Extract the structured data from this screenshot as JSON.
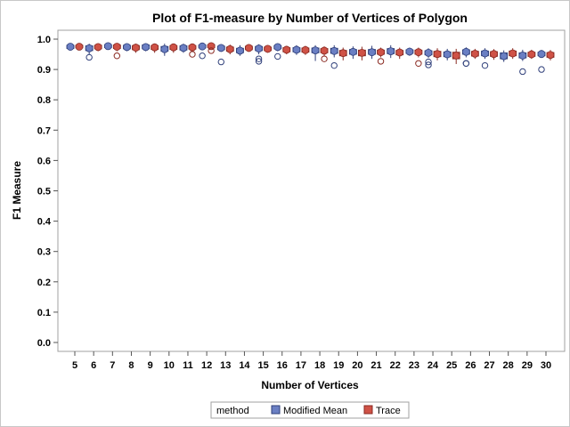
{
  "chart_data": {
    "type": "box",
    "title": "Plot of F1-measure by Number of Vertices of Polygon",
    "xlabel": "Number of Vertices",
    "ylabel": "F1 Measure",
    "ylim": [
      0.0,
      1.0
    ],
    "yticks": [
      "0.0",
      "0.1",
      "0.2",
      "0.3",
      "0.4",
      "0.5",
      "0.6",
      "0.7",
      "0.8",
      "0.9",
      "1.0"
    ],
    "grid": false,
    "legend_position": "bottom",
    "legend_title": "method",
    "categories": [
      "5",
      "6",
      "7",
      "8",
      "9",
      "10",
      "11",
      "12",
      "13",
      "14",
      "15",
      "16",
      "17",
      "18",
      "19",
      "20",
      "21",
      "22",
      "23",
      "24",
      "25",
      "26",
      "27",
      "28",
      "29",
      "30"
    ],
    "series": [
      {
        "name": "Modified Mean",
        "color": "#6a7fc3",
        "edge_color": "#2f3f7a",
        "boxes": [
          {
            "min": 0.962,
            "q1": 0.969,
            "median": 0.974,
            "q3": 0.98,
            "max": 0.985,
            "mean": 0.975,
            "outliers": []
          },
          {
            "min": 0.95,
            "q1": 0.962,
            "median": 0.97,
            "q3": 0.978,
            "max": 0.985,
            "mean": 0.97,
            "outliers": [
              0.94
            ]
          },
          {
            "min": 0.966,
            "q1": 0.972,
            "median": 0.977,
            "q3": 0.982,
            "max": 0.987,
            "mean": 0.977,
            "outliers": []
          },
          {
            "min": 0.96,
            "q1": 0.968,
            "median": 0.974,
            "q3": 0.98,
            "max": 0.985,
            "mean": 0.974,
            "outliers": []
          },
          {
            "min": 0.96,
            "q1": 0.968,
            "median": 0.975,
            "q3": 0.981,
            "max": 0.986,
            "mean": 0.974,
            "outliers": []
          },
          {
            "min": 0.945,
            "q1": 0.96,
            "median": 0.968,
            "q3": 0.976,
            "max": 0.985,
            "mean": 0.967,
            "outliers": []
          },
          {
            "min": 0.955,
            "q1": 0.964,
            "median": 0.971,
            "q3": 0.978,
            "max": 0.985,
            "mean": 0.971,
            "outliers": []
          },
          {
            "min": 0.965,
            "q1": 0.971,
            "median": 0.976,
            "q3": 0.981,
            "max": 0.986,
            "mean": 0.976,
            "outliers": [
              0.945
            ]
          },
          {
            "min": 0.958,
            "q1": 0.965,
            "median": 0.971,
            "q3": 0.977,
            "max": 0.983,
            "mean": 0.971,
            "outliers": [
              0.925
            ]
          },
          {
            "min": 0.945,
            "q1": 0.955,
            "median": 0.962,
            "q3": 0.97,
            "max": 0.98,
            "mean": 0.962,
            "outliers": []
          },
          {
            "min": 0.95,
            "q1": 0.962,
            "median": 0.969,
            "q3": 0.976,
            "max": 0.983,
            "mean": 0.969,
            "outliers": [
              0.935,
              0.927
            ]
          },
          {
            "min": 0.96,
            "q1": 0.968,
            "median": 0.974,
            "q3": 0.979,
            "max": 0.985,
            "mean": 0.974,
            "outliers": [
              0.943
            ]
          },
          {
            "min": 0.948,
            "q1": 0.958,
            "median": 0.965,
            "q3": 0.972,
            "max": 0.98,
            "mean": 0.965,
            "outliers": []
          },
          {
            "min": 0.928,
            "q1": 0.955,
            "median": 0.963,
            "q3": 0.971,
            "max": 0.98,
            "mean": 0.963,
            "outliers": []
          },
          {
            "min": 0.94,
            "q1": 0.953,
            "median": 0.962,
            "q3": 0.97,
            "max": 0.98,
            "mean": 0.961,
            "outliers": [
              0.913
            ]
          },
          {
            "min": 0.935,
            "q1": 0.95,
            "median": 0.958,
            "q3": 0.966,
            "max": 0.976,
            "mean": 0.958,
            "outliers": []
          },
          {
            "min": 0.935,
            "q1": 0.95,
            "median": 0.958,
            "q3": 0.966,
            "max": 0.978,
            "mean": 0.957,
            "outliers": []
          },
          {
            "min": 0.938,
            "q1": 0.952,
            "median": 0.961,
            "q3": 0.969,
            "max": 0.98,
            "mean": 0.96,
            "outliers": []
          },
          {
            "min": 0.945,
            "q1": 0.953,
            "median": 0.959,
            "q3": 0.965,
            "max": 0.972,
            "mean": 0.959,
            "outliers": []
          },
          {
            "min": 0.938,
            "q1": 0.948,
            "median": 0.955,
            "q3": 0.962,
            "max": 0.97,
            "mean": 0.955,
            "outliers": [
              0.915,
              0.925
            ]
          },
          {
            "min": 0.93,
            "q1": 0.942,
            "median": 0.95,
            "q3": 0.958,
            "max": 0.968,
            "mean": 0.95,
            "outliers": []
          },
          {
            "min": 0.94,
            "q1": 0.95,
            "median": 0.958,
            "q3": 0.965,
            "max": 0.973,
            "mean": 0.958,
            "outliers": [
              0.92,
              0.92
            ]
          },
          {
            "min": 0.935,
            "q1": 0.945,
            "median": 0.953,
            "q3": 0.961,
            "max": 0.97,
            "mean": 0.953,
            "outliers": [
              0.913
            ]
          },
          {
            "min": 0.925,
            "q1": 0.935,
            "median": 0.945,
            "q3": 0.955,
            "max": 0.963,
            "mean": 0.944,
            "outliers": []
          },
          {
            "min": 0.928,
            "q1": 0.938,
            "median": 0.946,
            "q3": 0.955,
            "max": 0.965,
            "mean": 0.946,
            "outliers": [
              0.893
            ]
          },
          {
            "min": 0.938,
            "q1": 0.945,
            "median": 0.951,
            "q3": 0.957,
            "max": 0.964,
            "mean": 0.951,
            "outliers": [
              0.9
            ]
          }
        ]
      },
      {
        "name": "Trace",
        "color": "#cf5246",
        "edge_color": "#8a2a22",
        "boxes": [
          {
            "min": 0.965,
            "q1": 0.971,
            "median": 0.975,
            "q3": 0.98,
            "max": 0.985,
            "mean": 0.975,
            "outliers": []
          },
          {
            "min": 0.96,
            "q1": 0.968,
            "median": 0.974,
            "q3": 0.98,
            "max": 0.985,
            "mean": 0.974,
            "outliers": []
          },
          {
            "min": 0.96,
            "q1": 0.969,
            "median": 0.975,
            "q3": 0.981,
            "max": 0.986,
            "mean": 0.975,
            "outliers": [
              0.945
            ]
          },
          {
            "min": 0.955,
            "q1": 0.965,
            "median": 0.972,
            "q3": 0.979,
            "max": 0.985,
            "mean": 0.972,
            "outliers": []
          },
          {
            "min": 0.955,
            "q1": 0.966,
            "median": 0.973,
            "q3": 0.979,
            "max": 0.985,
            "mean": 0.973,
            "outliers": []
          },
          {
            "min": 0.955,
            "q1": 0.966,
            "median": 0.973,
            "q3": 0.979,
            "max": 0.985,
            "mean": 0.973,
            "outliers": []
          },
          {
            "min": 0.958,
            "q1": 0.967,
            "median": 0.973,
            "q3": 0.979,
            "max": 0.985,
            "mean": 0.973,
            "outliers": [
              0.95
            ]
          },
          {
            "min": 0.965,
            "q1": 0.972,
            "median": 0.977,
            "q3": 0.982,
            "max": 0.987,
            "mean": 0.977,
            "outliers": [
              0.962
            ]
          },
          {
            "min": 0.95,
            "q1": 0.96,
            "median": 0.967,
            "q3": 0.974,
            "max": 0.982,
            "mean": 0.967,
            "outliers": []
          },
          {
            "min": 0.958,
            "q1": 0.965,
            "median": 0.971,
            "q3": 0.977,
            "max": 0.983,
            "mean": 0.971,
            "outliers": []
          },
          {
            "min": 0.955,
            "q1": 0.962,
            "median": 0.968,
            "q3": 0.974,
            "max": 0.98,
            "mean": 0.968,
            "outliers": []
          },
          {
            "min": 0.95,
            "q1": 0.958,
            "median": 0.965,
            "q3": 0.972,
            "max": 0.978,
            "mean": 0.965,
            "outliers": []
          },
          {
            "min": 0.948,
            "q1": 0.957,
            "median": 0.964,
            "q3": 0.971,
            "max": 0.978,
            "mean": 0.964,
            "outliers": []
          },
          {
            "min": 0.945,
            "q1": 0.955,
            "median": 0.962,
            "q3": 0.969,
            "max": 0.976,
            "mean": 0.962,
            "outliers": [
              0.935
            ]
          },
          {
            "min": 0.93,
            "q1": 0.945,
            "median": 0.954,
            "q3": 0.963,
            "max": 0.972,
            "mean": 0.954,
            "outliers": []
          },
          {
            "min": 0.93,
            "q1": 0.945,
            "median": 0.955,
            "q3": 0.964,
            "max": 0.975,
            "mean": 0.955,
            "outliers": []
          },
          {
            "min": 0.94,
            "q1": 0.95,
            "median": 0.957,
            "q3": 0.964,
            "max": 0.972,
            "mean": 0.957,
            "outliers": [
              0.927
            ]
          },
          {
            "min": 0.935,
            "q1": 0.948,
            "median": 0.956,
            "q3": 0.963,
            "max": 0.972,
            "mean": 0.956,
            "outliers": []
          },
          {
            "min": 0.94,
            "q1": 0.95,
            "median": 0.957,
            "q3": 0.964,
            "max": 0.972,
            "mean": 0.957,
            "outliers": [
              0.92
            ]
          },
          {
            "min": 0.93,
            "q1": 0.942,
            "median": 0.951,
            "q3": 0.96,
            "max": 0.97,
            "mean": 0.951,
            "outliers": []
          },
          {
            "min": 0.918,
            "q1": 0.935,
            "median": 0.946,
            "q3": 0.957,
            "max": 0.968,
            "mean": 0.946,
            "outliers": []
          },
          {
            "min": 0.935,
            "q1": 0.944,
            "median": 0.952,
            "q3": 0.96,
            "max": 0.968,
            "mean": 0.952,
            "outliers": []
          },
          {
            "min": 0.932,
            "q1": 0.943,
            "median": 0.951,
            "q3": 0.959,
            "max": 0.967,
            "mean": 0.951,
            "outliers": []
          },
          {
            "min": 0.935,
            "q1": 0.945,
            "median": 0.953,
            "q3": 0.961,
            "max": 0.97,
            "mean": 0.953,
            "outliers": []
          },
          {
            "min": 0.935,
            "q1": 0.943,
            "median": 0.95,
            "q3": 0.957,
            "max": 0.965,
            "mean": 0.95,
            "outliers": []
          },
          {
            "min": 0.93,
            "q1": 0.94,
            "median": 0.948,
            "q3": 0.956,
            "max": 0.964,
            "mean": 0.948,
            "outliers": []
          }
        ]
      }
    ]
  }
}
